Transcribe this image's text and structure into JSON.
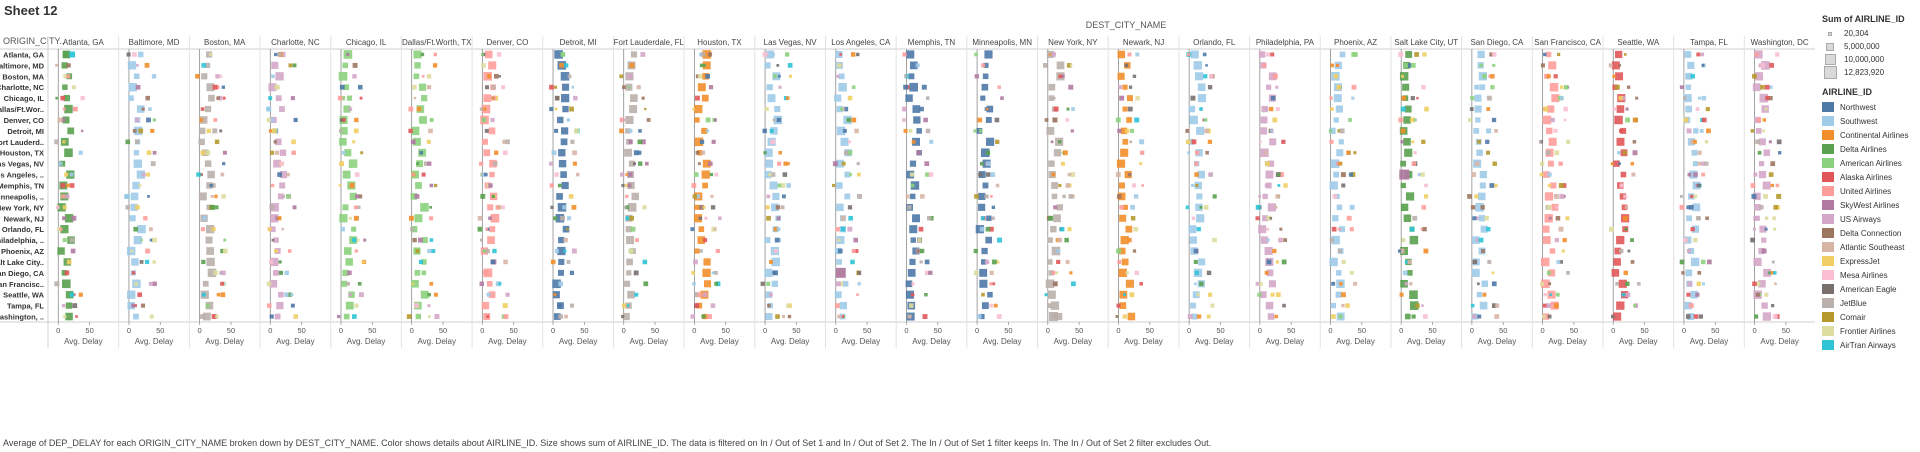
{
  "sheet_title": "Sheet 12",
  "caption": "Average of DEP_DELAY for each ORIGIN_CITY_NAME broken down by DEST_CITY_NAME.  Color shows details about AIRLINE_ID.  Size shows sum of AIRLINE_ID. The data is filtered on In / Out of Set 1 and In / Out of Set 2. The In / Out of Set 1 filter keeps In. The In / Out of Set 2 filter excludes Out.",
  "size_legend": {
    "title": "Sum of AIRLINE_ID",
    "items": [
      "20,304",
      "5,000,000",
      "10,000,000",
      "12,823,920"
    ]
  },
  "color_legend": {
    "title": "AIRLINE_ID",
    "items": [
      {
        "name": "Northwest",
        "color": "#4e79a7"
      },
      {
        "name": "Southwest",
        "color": "#a0cbe8"
      },
      {
        "name": "Continental Airlines",
        "color": "#f28e2b"
      },
      {
        "name": "Delta Airlines",
        "color": "#59a14f"
      },
      {
        "name": "American Airlines",
        "color": "#8cd17d"
      },
      {
        "name": "Alaska Airlines",
        "color": "#e15759"
      },
      {
        "name": "United Airlines",
        "color": "#ff9d9a"
      },
      {
        "name": "SkyWest Airlines",
        "color": "#b07aa1"
      },
      {
        "name": "US Airways",
        "color": "#d4a6c8"
      },
      {
        "name": "Delta Connection",
        "color": "#9d7660"
      },
      {
        "name": "Atlantic Southeast",
        "color": "#d7b5a6"
      },
      {
        "name": "ExpressJet",
        "color": "#f1ce63"
      },
      {
        "name": "Mesa Airlines",
        "color": "#fabfd2"
      },
      {
        "name": "American Eagle",
        "color": "#79706e"
      },
      {
        "name": "JetBlue",
        "color": "#bab0ac"
      },
      {
        "name": "Comair",
        "color": "#b6992d"
      },
      {
        "name": "Frontier Airlines",
        "color": "#dddd9f"
      },
      {
        "name": "AirTran Airways",
        "color": "#2ec4d6"
      }
    ]
  },
  "chart_data": {
    "type": "scatter",
    "title": "",
    "column_field": "DEST_CITY_NAME",
    "row_field": "ORIGIN_CITY..",
    "measure": "Avg. Delay",
    "x_ticks": [
      0,
      50
    ],
    "xlim": [
      -10,
      90
    ],
    "grid": false,
    "legend_position": "right",
    "dest_cities": [
      "Atlanta, GA",
      "Baltimore, MD",
      "Boston, MA",
      "Charlotte, NC",
      "Chicago, IL",
      "Dallas/Ft.Worth, TX",
      "Denver, CO",
      "Detroit, MI",
      "Fort Lauderdale, FL",
      "Houston, TX",
      "Las Vegas, NV",
      "Los Angeles, CA",
      "Memphis, TN",
      "Minneapolis, MN",
      "New York, NY",
      "Newark, NJ",
      "Orlando, FL",
      "Philadelphia, PA",
      "Phoenix, AZ",
      "Salt Lake City, UT",
      "San Diego, CA",
      "San Francisco, CA",
      "Seattle, WA",
      "Tampa, FL",
      "Washington, DC"
    ],
    "origin_cities": [
      "Atlanta, GA",
      "Baltimore, MD",
      "Boston, MA",
      "Charlotte, NC",
      "Chicago, IL",
      "Dallas/Ft.Wor..",
      "Denver, CO",
      "Detroit, MI",
      "Fort Lauderd..",
      "Houston, TX",
      "Las Vegas, NV",
      "Los Angeles, ..",
      "Memphis, TN",
      "Minneapolis, ..",
      "New York, NY",
      "Newark, NJ",
      "Orlando, FL",
      "Philadelphia, ..",
      "Phoenix, AZ",
      "Salt Lake City..",
      "San Diego, CA",
      "San Francisc..",
      "Seattle, WA",
      "Tampa, FL",
      "Washington, .."
    ],
    "hub_airline_by_dest": [
      3,
      1,
      14,
      8,
      4,
      4,
      6,
      0,
      14,
      2,
      1,
      1,
      0,
      0,
      14,
      2,
      1,
      8,
      1,
      3,
      1,
      6,
      5,
      1,
      8
    ],
    "extra_airlines": [
      1,
      6,
      2,
      14,
      8,
      10,
      17,
      12,
      4,
      7,
      16,
      13,
      0,
      9,
      11,
      3,
      5,
      15
    ],
    "sample_marks": [
      {
        "origin": "Atlanta, GA",
        "dest": "Atlanta, GA",
        "airline": "Delta Airlines",
        "delay": 13,
        "sum": 5000000
      },
      {
        "origin": "Atlanta, GA",
        "dest": "Atlanta, GA",
        "airline": "AirTran Airways",
        "delay": 22,
        "sum": 2500000
      },
      {
        "origin": "Los Angeles, ..",
        "dest": "Salt Lake City, UT",
        "airline": "SkyWest Airlines",
        "delay": 5,
        "sum": 10000000
      },
      {
        "origin": "San Diego, CA",
        "dest": "Los Angeles, CA",
        "airline": "SkyWest Airlines",
        "delay": 8,
        "sum": 10000000
      },
      {
        "origin": "Washington, ..",
        "dest": "New York, NY",
        "airline": "JetBlue",
        "delay": 9,
        "sum": 8000000
      }
    ]
  }
}
